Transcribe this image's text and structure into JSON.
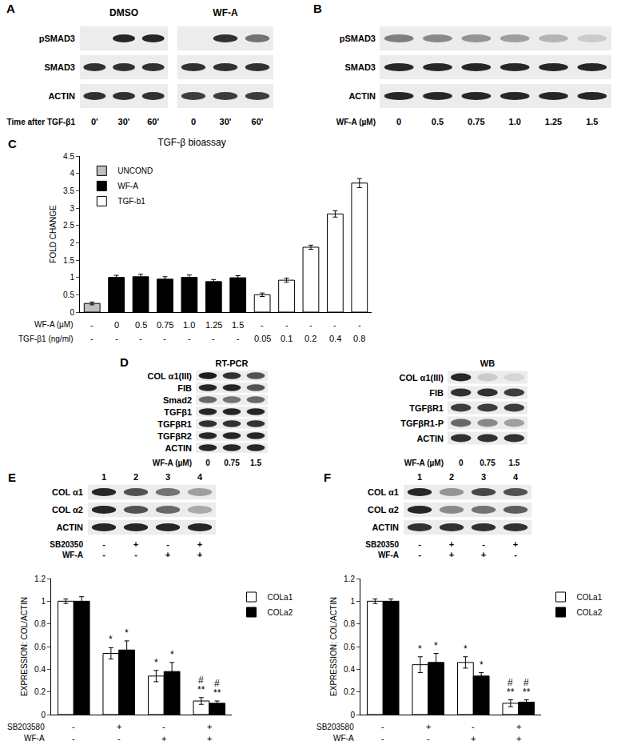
{
  "chart_data": [
    {
      "type": "bar",
      "panel": "C",
      "title": "TGF-β bioassay",
      "y_label": "FOLD CHANGE",
      "categories": [
        null,
        null,
        null,
        null,
        null,
        null,
        null,
        null,
        null,
        null,
        null,
        null
      ],
      "series": [
        {
          "name": "UNCOND",
          "color": "#bfbfbf",
          "values": [
            0.25,
            null,
            null,
            null,
            null,
            null,
            null,
            null,
            null,
            null,
            null,
            null
          ],
          "errors": [
            0.04,
            null,
            null,
            null,
            null,
            null,
            null,
            null,
            null,
            null,
            null,
            null
          ]
        },
        {
          "name": "WF-A",
          "color": "#000000",
          "values": [
            null,
            1.0,
            1.02,
            0.95,
            1.0,
            0.88,
            0.99,
            null,
            null,
            null,
            null,
            null
          ],
          "errors": [
            null,
            0.06,
            0.07,
            0.07,
            0.07,
            0.06,
            0.06,
            null,
            null,
            null,
            null,
            null
          ]
        },
        {
          "name": "TGF-b1",
          "color": "#ffffff",
          "values": [
            null,
            null,
            null,
            null,
            null,
            null,
            null,
            0.5,
            0.92,
            1.87,
            2.83,
            3.72
          ],
          "errors": [
            null,
            null,
            null,
            null,
            null,
            null,
            null,
            0.05,
            0.06,
            0.06,
            0.09,
            0.13
          ]
        }
      ],
      "x_rows": [
        {
          "label": "WF-A (µM)",
          "values": [
            "-",
            "0",
            "0.5",
            "0.75",
            "1.0",
            "1.25",
            "1.5",
            "-",
            "-",
            "-",
            "-",
            "-"
          ]
        },
        {
          "label": "TGF-β1 (ng/ml)",
          "values": [
            "-",
            "-",
            "-",
            "-",
            "-",
            "-",
            "-",
            "0.05",
            "0.1",
            "0.2",
            "0.4",
            "0.8"
          ]
        }
      ],
      "ylim": [
        0,
        4.5
      ],
      "yticks": [
        0,
        0.5,
        1,
        1.5,
        2,
        2.5,
        3,
        3.5,
        4,
        4.5
      ],
      "grid": false,
      "legend": "top-left",
      "stacked": false
    },
    {
      "type": "bar",
      "y_label": "EXPRESSION: COL/ACTIN",
      "categories": [
        null,
        null,
        null,
        null
      ],
      "series": [
        {
          "name": "COLa1",
          "color": "#ffffff",
          "values": [
            1.0,
            0.54,
            0.34,
            0.12
          ],
          "errors": [
            0.02,
            0.05,
            0.05,
            0.03
          ],
          "significance": [
            null,
            "*",
            "*",
            "**"
          ],
          "significance_2": [
            null,
            null,
            null,
            "#"
          ]
        },
        {
          "name": "COLa2",
          "color": "#000000",
          "values": [
            1.0,
            0.57,
            0.38,
            0.1
          ],
          "errors": [
            0.04,
            0.08,
            0.08,
            0.02
          ],
          "significance": [
            null,
            "*",
            "*",
            "**"
          ],
          "significance_2": [
            null,
            null,
            null,
            "#"
          ]
        }
      ],
      "x_rows": [
        {
          "label": "SB203580",
          "values": [
            "-",
            "+",
            "-",
            "+"
          ]
        },
        {
          "label": "WF-A",
          "values": [
            "-",
            "-",
            "+",
            "+"
          ]
        }
      ],
      "ylim": [
        0,
        1.2
      ],
      "yticks": [
        0,
        0.2,
        0.4,
        0.6,
        0.8,
        1,
        1.2
      ],
      "grid": false,
      "legend": "right",
      "stacked": false
    },
    {
      "type": "bar",
      "y_label": "EXPRESSION: COL/ACTIN",
      "categories": [
        null,
        null,
        null,
        null
      ],
      "series": [
        {
          "name": "COLa1",
          "color": "#ffffff",
          "values": [
            1.0,
            0.44,
            0.46,
            0.1
          ],
          "errors": [
            0.02,
            0.07,
            0.05,
            0.03
          ],
          "significance": [
            null,
            "*",
            "*",
            "**"
          ],
          "significance_2": [
            null,
            null,
            null,
            "#"
          ]
        },
        {
          "name": "COLa2",
          "color": "#000000",
          "values": [
            1.0,
            0.46,
            0.34,
            0.11
          ],
          "errors": [
            0.02,
            0.08,
            0.03,
            0.02
          ],
          "significance": [
            null,
            "*",
            "*",
            "**"
          ],
          "significance_2": [
            null,
            null,
            null,
            "#"
          ]
        }
      ],
      "x_rows": [
        {
          "label": "SB203580",
          "values": [
            "-",
            "+",
            "-",
            "+"
          ]
        },
        {
          "label": "WF-A",
          "values": [
            "-",
            "-",
            "+",
            "+"
          ]
        }
      ],
      "ylim": [
        0,
        1.2
      ],
      "yticks": [
        0,
        0.2,
        0.4,
        0.6,
        0.8,
        1,
        1.2
      ],
      "grid": false,
      "legend": "right",
      "stacked": false
    }
  ],
  "blots": {
    "A": {
      "label": "A",
      "rows": [
        "pSMAD3",
        "SMAD3",
        "ACTIN"
      ],
      "lane_title": "Time after TGF-β1",
      "groups": [
        {
          "title": "DMSO",
          "lanes": [
            "0'",
            "30'",
            "60'"
          ],
          "bands": [
            [
              0,
              0.9,
              0.9
            ],
            [
              0.85,
              0.85,
              0.85
            ],
            [
              0.85,
              0.85,
              0.85
            ]
          ]
        },
        {
          "title": "WF-A",
          "lanes": [
            "0",
            "30'",
            "60'"
          ],
          "bands": [
            [
              0,
              0.85,
              0.55
            ],
            [
              0.85,
              0.85,
              0.85
            ],
            [
              0.8,
              0.8,
              0.8
            ]
          ]
        }
      ]
    },
    "B": {
      "label": "B",
      "rows": [
        "pSMAD3",
        "SMAD3",
        "ACTIN"
      ],
      "lane_title": "WF-A (µM)",
      "lanes": [
        "0",
        "0.5",
        "0.75",
        "1.0",
        "1.25",
        "1.5"
      ],
      "bands": [
        [
          0.5,
          0.45,
          0.4,
          0.35,
          0.25,
          0.15
        ],
        [
          0.9,
          0.9,
          0.9,
          0.9,
          0.9,
          0.9
        ],
        [
          0.9,
          0.9,
          0.9,
          0.9,
          0.9,
          0.9
        ]
      ]
    },
    "D": {
      "label": "D",
      "groups": [
        {
          "title": "RT-PCR",
          "rows": [
            "COL α1(III)",
            "FIB",
            "Smad2",
            "TGFβ1",
            "TGFβR1",
            "TGFβR2",
            "ACTIN"
          ],
          "lane_title": "WF-A (µM)",
          "lanes": [
            "0",
            "0.75",
            "1.5"
          ],
          "bands": [
            [
              0.95,
              0.85,
              0.7
            ],
            [
              0.9,
              0.9,
              0.7
            ],
            [
              0.6,
              0.55,
              0.6
            ],
            [
              0.9,
              0.9,
              0.9
            ],
            [
              0.85,
              0.85,
              0.85
            ],
            [
              0.9,
              0.9,
              0.9
            ],
            [
              0.9,
              0.9,
              0.9
            ]
          ]
        },
        {
          "title": "WB",
          "rows": [
            "COL α1(III)",
            "FIB",
            "TGFβR1",
            "TGFβR1-P",
            "ACTIN"
          ],
          "lane_title": "WF-A (µM)",
          "lanes": [
            "0",
            "0.75",
            "1.5"
          ],
          "bands": [
            [
              0.9,
              0.15,
              0.1
            ],
            [
              0.85,
              0.85,
              0.8
            ],
            [
              0.8,
              0.8,
              0.8
            ],
            [
              0.6,
              0.45,
              0.35
            ],
            [
              0.85,
              0.85,
              0.85
            ]
          ]
        }
      ]
    },
    "E": {
      "label": "E",
      "lane_numbers": [
        "1",
        "2",
        "3",
        "4"
      ],
      "rows": [
        "COL α1",
        "COL α2",
        "ACTIN"
      ],
      "bands": [
        [
          0.9,
          0.7,
          0.55,
          0.35
        ],
        [
          0.9,
          0.7,
          0.6,
          0.3
        ],
        [
          0.9,
          0.9,
          0.9,
          0.9
        ]
      ],
      "conditions": [
        {
          "label": "SB20350",
          "values": [
            "-",
            "+",
            "-",
            "+"
          ]
        },
        {
          "label": "WF-A",
          "values": [
            "-",
            "-",
            "+",
            "+"
          ]
        }
      ]
    },
    "F": {
      "label": "F",
      "lane_numbers": [
        "1",
        "2",
        "3",
        "4"
      ],
      "rows": [
        "COL α1",
        "COL α2",
        "ACTIN"
      ],
      "bands": [
        [
          0.9,
          0.4,
          0.75,
          0.7
        ],
        [
          0.9,
          0.45,
          0.55,
          0.65
        ],
        [
          0.85,
          0.85,
          0.85,
          0.85
        ]
      ],
      "conditions": [
        {
          "label": "SB20350",
          "values": [
            "-",
            "+",
            "-",
            "+"
          ]
        },
        {
          "label": "WF-A",
          "values": [
            "-",
            "+",
            "+",
            "-"
          ]
        }
      ]
    }
  }
}
